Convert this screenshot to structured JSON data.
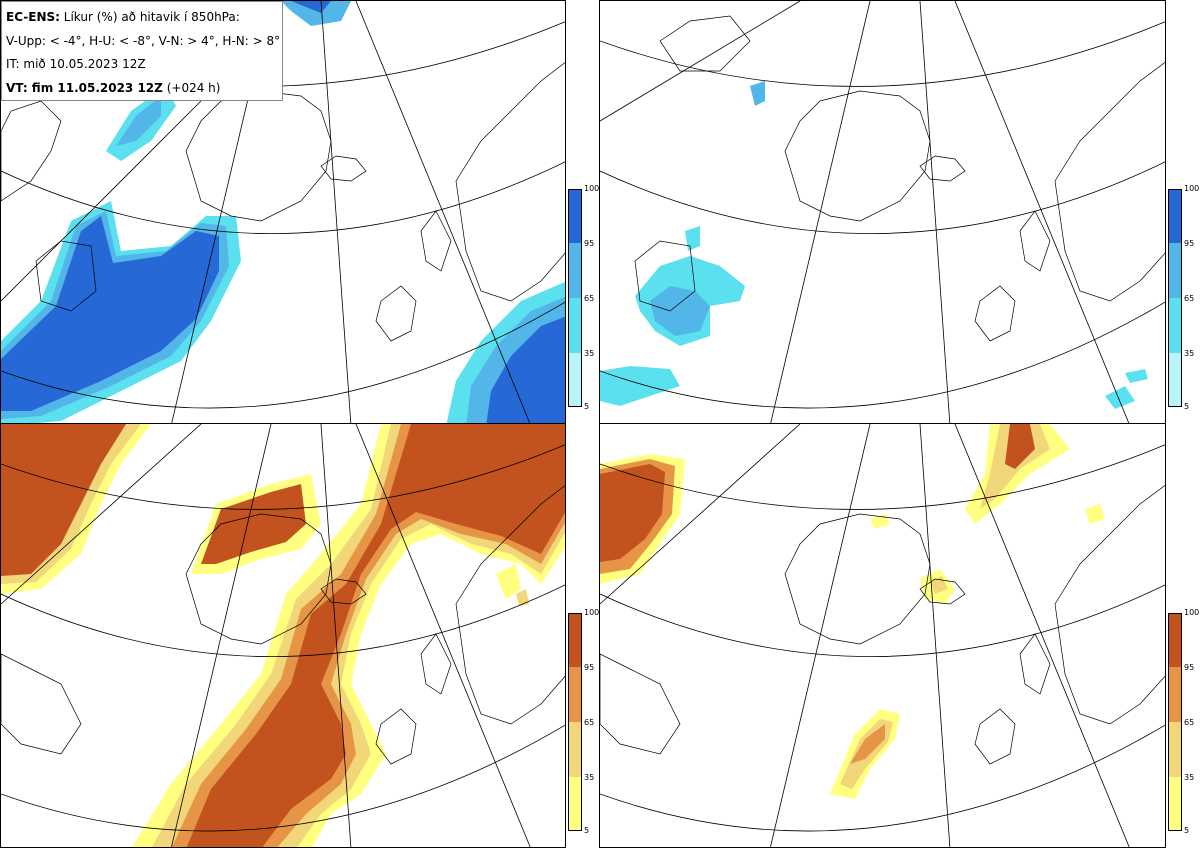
{
  "header": {
    "model": "EC-ENS:",
    "title": "Líkur (%) að hitavik í 850hPa:",
    "criteria": "V-Upp: < -4°, H-U: < -8°, V-N: > 4°, H-N: > 8°",
    "init_time": "IT: mið 10.05.2023 12Z",
    "valid_label": "VT: fim 11.05.2023 12Z",
    "lead_time": "(+024 h)"
  },
  "colors": {
    "cold": [
      "#b8f4f8",
      "#5be0f0",
      "#53b6e8",
      "#2669d6"
    ],
    "warm": [
      "#ffff80",
      "#f2d77a",
      "#e69547",
      "#c2521e"
    ],
    "land_outline": "#000000",
    "grid": "#000000"
  },
  "colorbar": {
    "ticks": [
      "100",
      "95",
      "65",
      "35",
      "5"
    ]
  },
  "panels": [
    {
      "id": "V-Upp",
      "scheme": "cold"
    },
    {
      "id": "H-U",
      "scheme": "cold"
    },
    {
      "id": "V-N",
      "scheme": "warm"
    },
    {
      "id": "H-N",
      "scheme": "warm"
    }
  ]
}
